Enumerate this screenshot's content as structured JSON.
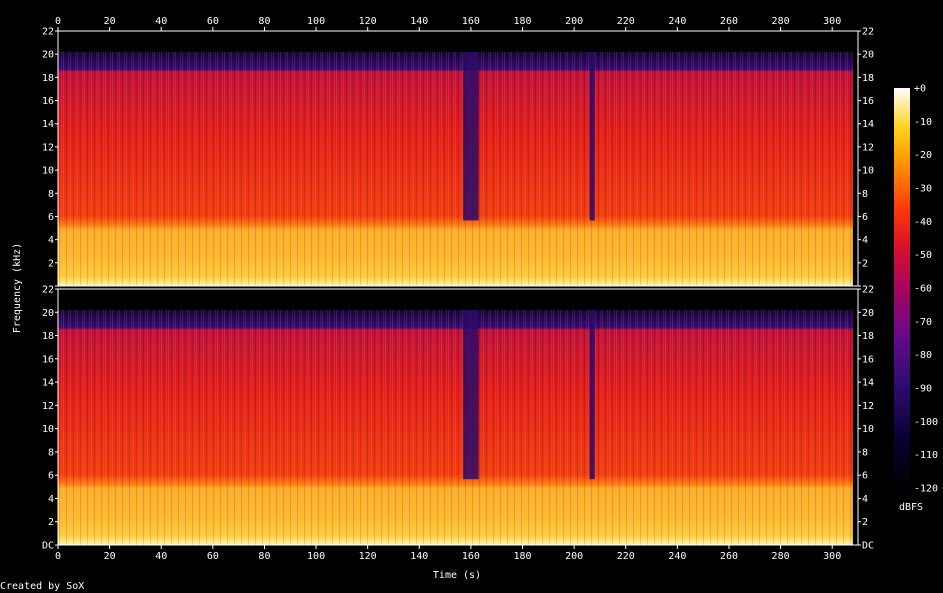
{
  "chart_data": {
    "type": "heatmap",
    "title": "",
    "xlabel": "Time (s)",
    "ylabel": "Frequency (kHz)",
    "xlim": [
      0,
      310
    ],
    "ylim": [
      0,
      22
    ],
    "x_ticks": [
      0,
      20,
      40,
      60,
      80,
      100,
      120,
      140,
      160,
      180,
      200,
      220,
      240,
      260,
      280,
      300
    ],
    "y_ticks": [
      "DC",
      "2",
      "4",
      "6",
      "8",
      "10",
      "12",
      "14",
      "16",
      "18",
      "20",
      "22"
    ],
    "y_tick_values": [
      0,
      2,
      4,
      6,
      8,
      10,
      12,
      14,
      16,
      18,
      20,
      22
    ],
    "channels": 2,
    "colorbar": {
      "label": "dBFS",
      "ticks": [
        "+0",
        "-10",
        "-20",
        "-30",
        "-40",
        "-50",
        "-60",
        "-70",
        "-80",
        "-90",
        "-100",
        "-110",
        "-120"
      ],
      "min": -120,
      "max": 0
    },
    "quiet_segments_s": [
      [
        157,
        163
      ],
      [
        206,
        208
      ]
    ],
    "bandwidth_khz": 20.2,
    "duration_s": 308
  },
  "footer": {
    "credit": "Created by SoX"
  },
  "colors": {
    "background": "#000000",
    "axis": "#ffffff"
  }
}
